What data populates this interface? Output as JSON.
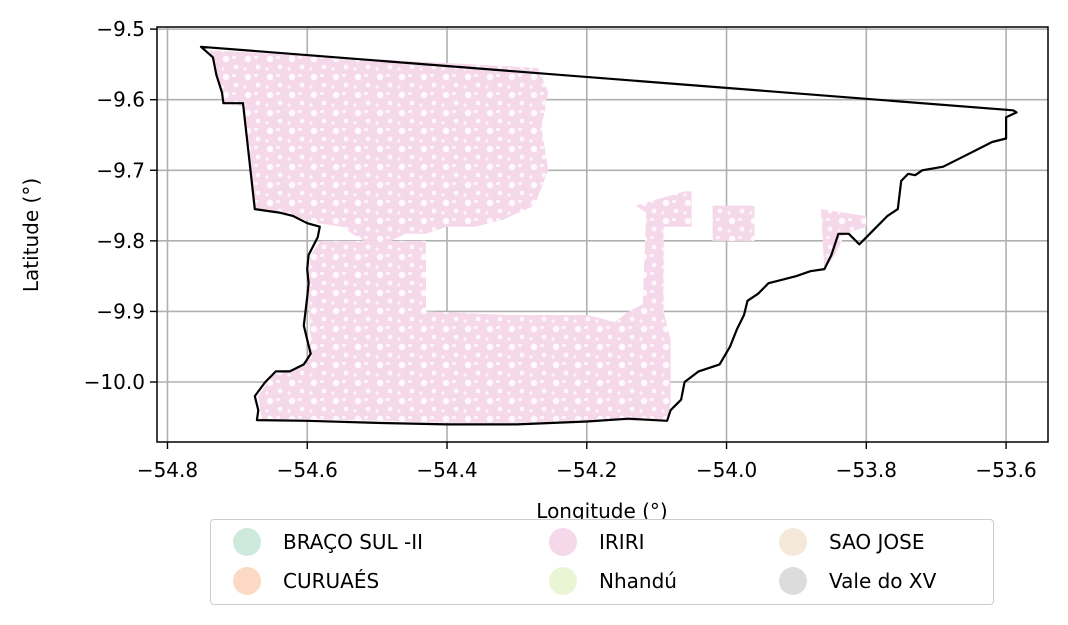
{
  "chart_data": {
    "type": "map",
    "xlabel": "Longitude (°)",
    "ylabel": "Latitude (°)",
    "xlim": [
      -54.815,
      -53.54
    ],
    "ylim": [
      -10.085,
      -9.497
    ],
    "xticks": [
      -54.8,
      -54.6,
      -54.4,
      -54.2,
      -54.0,
      -53.8,
      -53.6
    ],
    "xtick_labels": [
      "−54.8",
      "−54.6",
      "−54.4",
      "−54.2",
      "−54.0",
      "−53.8",
      "−53.6"
    ],
    "yticks": [
      -9.5,
      -9.6,
      -9.7,
      -9.8,
      -9.9,
      -10.0
    ],
    "ytick_labels": [
      "−9.5",
      "−9.6",
      "−9.7",
      "−9.8",
      "−9.9",
      "−10.0"
    ],
    "grid": true,
    "boundary_color": "#000000",
    "legend": {
      "placement": "below-center",
      "columns": 3,
      "items": [
        {
          "label": "BRAÇO SUL -II",
          "color": "#cdeadc"
        },
        {
          "label": "IRIRI",
          "color": "#f5d8ea"
        },
        {
          "label": "SAO JOSE",
          "color": "#f4e9d8"
        },
        {
          "label": "CURUAÉS",
          "color": "#fcd9c2"
        },
        {
          "label": "Nhandú",
          "color": "#eaf5d6"
        },
        {
          "label": "Vale do XV",
          "color": "#dcdcdc"
        }
      ]
    },
    "boundary": [
      [
        -54.752,
        -9.525
      ],
      [
        -53.59,
        -9.615
      ],
      [
        -53.585,
        -9.618
      ],
      [
        -53.6,
        -9.625
      ],
      [
        -53.6,
        -9.655
      ],
      [
        -53.62,
        -9.66
      ],
      [
        -53.64,
        -9.67
      ],
      [
        -53.66,
        -9.68
      ],
      [
        -53.69,
        -9.695
      ],
      [
        -53.72,
        -9.7
      ],
      [
        -53.73,
        -9.707
      ],
      [
        -53.74,
        -9.705
      ],
      [
        -53.75,
        -9.715
      ],
      [
        -53.755,
        -9.755
      ],
      [
        -53.77,
        -9.765
      ],
      [
        -53.785,
        -9.78
      ],
      [
        -53.795,
        -9.79
      ],
      [
        -53.81,
        -9.805
      ],
      [
        -53.825,
        -9.79
      ],
      [
        -53.84,
        -9.79
      ],
      [
        -53.85,
        -9.82
      ],
      [
        -53.86,
        -9.84
      ],
      [
        -53.88,
        -9.843
      ],
      [
        -53.9,
        -9.85
      ],
      [
        -53.92,
        -9.855
      ],
      [
        -53.94,
        -9.86
      ],
      [
        -53.955,
        -9.875
      ],
      [
        -53.97,
        -9.885
      ],
      [
        -53.975,
        -9.905
      ],
      [
        -53.985,
        -9.925
      ],
      [
        -53.995,
        -9.95
      ],
      [
        -54.01,
        -9.975
      ],
      [
        -54.04,
        -9.985
      ],
      [
        -54.06,
        -10.0
      ],
      [
        -54.065,
        -10.025
      ],
      [
        -54.08,
        -10.04
      ],
      [
        -54.085,
        -10.055
      ],
      [
        -54.14,
        -10.052
      ],
      [
        -54.2,
        -10.056
      ],
      [
        -54.3,
        -10.06
      ],
      [
        -54.4,
        -10.06
      ],
      [
        -54.5,
        -10.058
      ],
      [
        -54.6,
        -10.055
      ],
      [
        -54.672,
        -10.054
      ],
      [
        -54.67,
        -10.04
      ],
      [
        -54.675,
        -10.02
      ],
      [
        -54.66,
        -10.0
      ],
      [
        -54.645,
        -9.985
      ],
      [
        -54.625,
        -9.985
      ],
      [
        -54.605,
        -9.975
      ],
      [
        -54.595,
        -9.96
      ],
      [
        -54.6,
        -9.94
      ],
      [
        -54.605,
        -9.92
      ],
      [
        -54.6,
        -9.88
      ],
      [
        -54.598,
        -9.86
      ],
      [
        -54.6,
        -9.84
      ],
      [
        -54.598,
        -9.82
      ],
      [
        -54.585,
        -9.795
      ],
      [
        -54.582,
        -9.78
      ],
      [
        -54.6,
        -9.775
      ],
      [
        -54.62,
        -9.765
      ],
      [
        -54.64,
        -9.76
      ],
      [
        -54.675,
        -9.755
      ],
      [
        -54.692,
        -9.605
      ],
      [
        -54.72,
        -9.605
      ],
      [
        -54.722,
        -9.59
      ],
      [
        -54.73,
        -9.565
      ],
      [
        -54.735,
        -9.54
      ],
      [
        -54.752,
        -9.525
      ]
    ],
    "regions": [
      {
        "label": "IRIRI",
        "polygons": [
          [
            [
              -54.74,
              -9.53
            ],
            [
              -54.27,
              -9.555
            ],
            [
              -54.255,
              -9.59
            ],
            [
              -54.265,
              -9.64
            ],
            [
              -54.255,
              -9.7
            ],
            [
              -54.275,
              -9.75
            ],
            [
              -54.32,
              -9.77
            ],
            [
              -54.36,
              -9.78
            ],
            [
              -54.4,
              -9.78
            ],
            [
              -54.43,
              -9.79
            ],
            [
              -54.46,
              -9.79
            ],
            [
              -54.48,
              -9.8
            ],
            [
              -54.52,
              -9.8
            ],
            [
              -54.55,
              -9.78
            ],
            [
              -54.585,
              -9.775
            ],
            [
              -54.64,
              -9.76
            ],
            [
              -54.675,
              -9.755
            ],
            [
              -54.69,
              -9.61
            ],
            [
              -54.72,
              -9.605
            ],
            [
              -54.73,
              -9.565
            ]
          ],
          [
            [
              -54.58,
              -9.8
            ],
            [
              -54.5,
              -9.8
            ],
            [
              -54.43,
              -9.8
            ],
            [
              -54.43,
              -9.9
            ],
            [
              -54.31,
              -9.905
            ],
            [
              -54.2,
              -9.905
            ],
            [
              -54.18,
              -9.91
            ],
            [
              -54.16,
              -9.915
            ],
            [
              -54.14,
              -9.9
            ],
            [
              -54.12,
              -9.89
            ],
            [
              -54.115,
              -9.76
            ],
            [
              -54.13,
              -9.75
            ],
            [
              -54.06,
              -9.73
            ],
            [
              -54.05,
              -9.73
            ],
            [
              -54.05,
              -9.78
            ],
            [
              -54.09,
              -9.78
            ],
            [
              -54.09,
              -9.9
            ],
            [
              -54.08,
              -9.94
            ],
            [
              -54.08,
              -10.03
            ],
            [
              -54.085,
              -10.055
            ],
            [
              -54.2,
              -10.055
            ],
            [
              -54.3,
              -10.058
            ],
            [
              -54.4,
              -10.058
            ],
            [
              -54.5,
              -10.055
            ],
            [
              -54.6,
              -10.053
            ],
            [
              -54.665,
              -10.053
            ],
            [
              -54.67,
              -10.02
            ],
            [
              -54.65,
              -9.99
            ],
            [
              -54.6,
              -9.975
            ],
            [
              -54.595,
              -9.94
            ],
            [
              -54.6,
              -9.86
            ],
            [
              -54.595,
              -9.82
            ]
          ],
          [
            [
              -54.02,
              -9.75
            ],
            [
              -53.96,
              -9.75
            ],
            [
              -53.96,
              -9.8
            ],
            [
              -54.02,
              -9.8
            ]
          ],
          [
            [
              -53.865,
              -9.755
            ],
            [
              -53.8,
              -9.765
            ],
            [
              -53.8,
              -9.78
            ],
            [
              -53.83,
              -9.79
            ],
            [
              -53.845,
              -9.82
            ],
            [
              -53.86,
              -9.84
            ]
          ]
        ]
      }
    ]
  }
}
